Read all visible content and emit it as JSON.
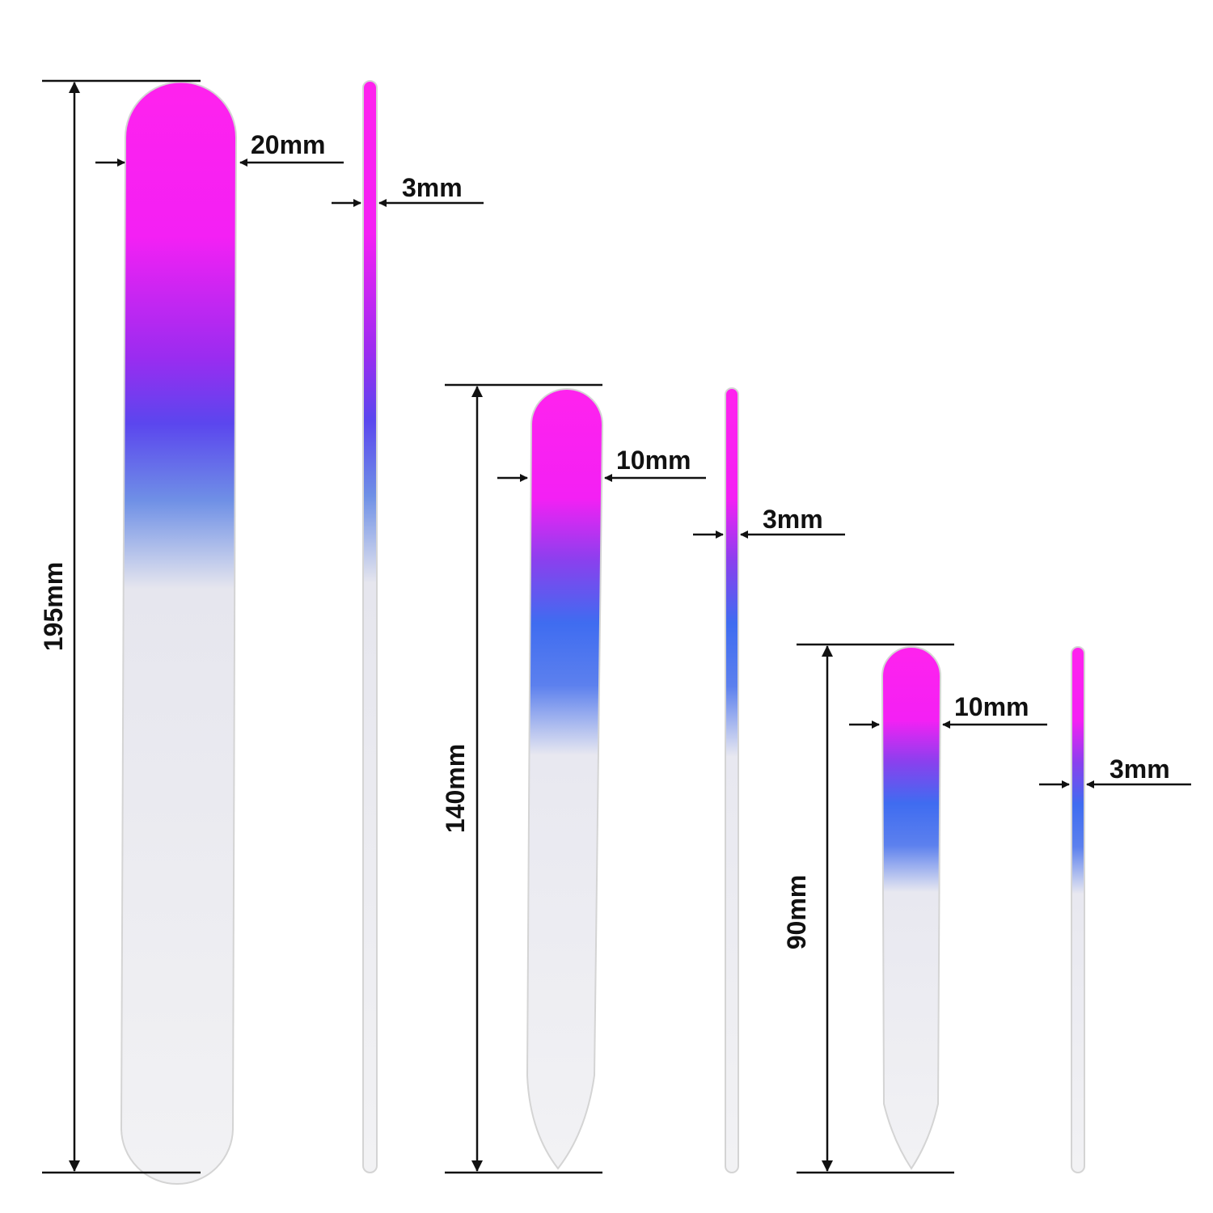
{
  "files": [
    {
      "length": "195mm",
      "width": "20mm",
      "thickness": "3mm"
    },
    {
      "length": "140mm",
      "width": "10mm",
      "thickness": "3mm"
    },
    {
      "length": "90mm",
      "width": "10mm",
      "thickness": "3mm"
    }
  ]
}
